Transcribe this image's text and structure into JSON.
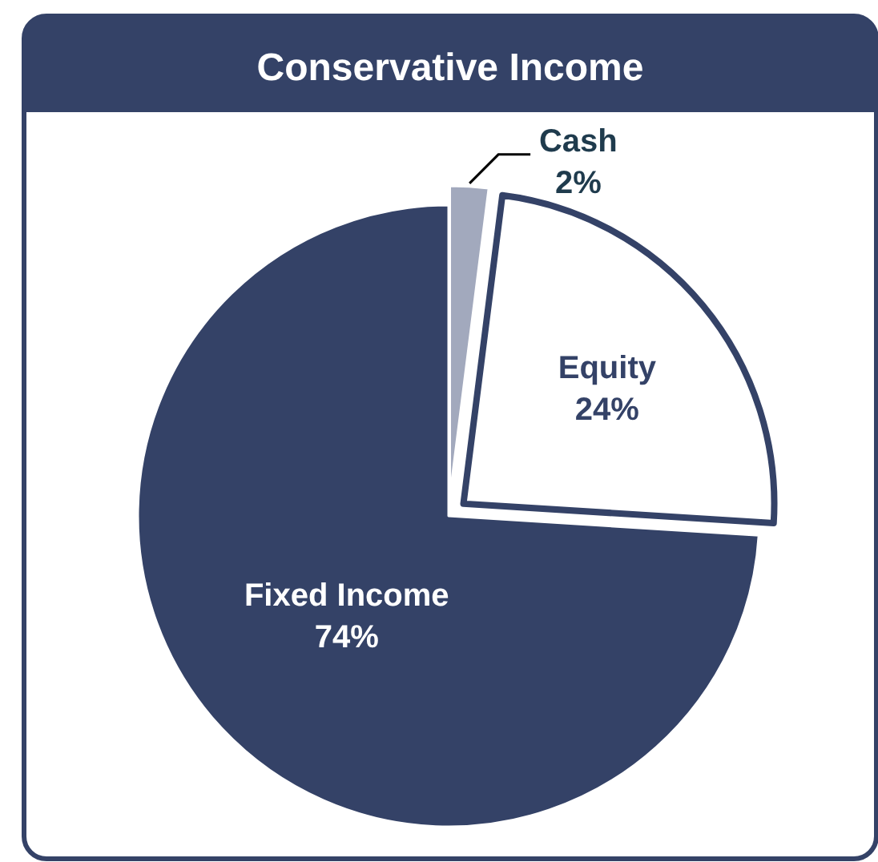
{
  "chart_data": {
    "type": "pie",
    "title": "Conservative Income",
    "categories": [
      "Cash",
      "Equity",
      "Fixed Income"
    ],
    "values": [
      2,
      24,
      74
    ],
    "value_labels": [
      "2%",
      "24%",
      "74%"
    ],
    "colors": [
      "#a2a9bd",
      "#ffffff",
      "#344267"
    ]
  }
}
